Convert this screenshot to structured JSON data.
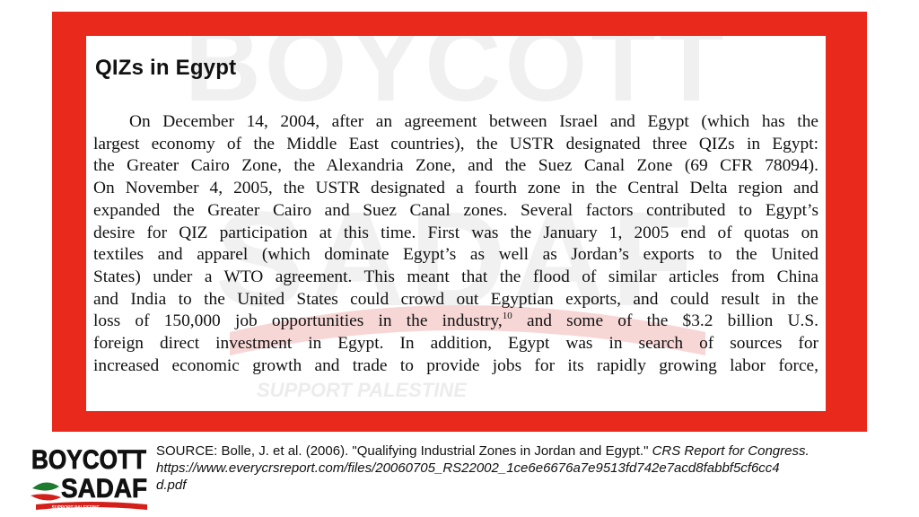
{
  "document": {
    "title": "QIZs in Egypt",
    "lines": [
      "On December 14, 2004, after an agreement between Israel and Egypt (which has the",
      "largest economy of the Middle East countries), the USTR designated three QIZs in Egypt:",
      "the Greater Cairo Zone, the Alexandria Zone, and the Suez Canal Zone (69 CFR 78094).",
      "On November 4, 2005, the USTR designated a fourth zone in the Central Delta region and",
      "expanded the Greater Cairo and Suez Canal zones. Several factors contributed to Egypt’s",
      "desire for QIZ participation at this time.  First  was the  January 1, 2005 end of quotas on",
      "textiles and apparel (which dominate Egypt’s as well as Jordan’s exports to the United",
      "States) under a WTO agreement.  This meant that the flood of similar articles from China",
      "and India to the United States could crowd out Egyptian exports, and could result in the"
    ],
    "line_10_before_footnote": "loss of 150,000 job opportunities in the industry,",
    "footnote_marker": "10",
    "line_10_after_footnote": " and some of the $3.2 billion U.S.",
    "lines_end": [
      "foreign direct investment in Egypt.  In addition, Egypt was   in search of sources for",
      "increased economic growth and trade to provide jobs for its rapidly growing labor force,"
    ]
  },
  "watermark": {
    "line1": "BOYCOTT",
    "line2": "SADAF",
    "tagline": "SUPPORT PALESTINE"
  },
  "logo": {
    "line1": "BOYCOTT",
    "line2": "SADAF",
    "tagline": "SUPPORT PALESTINE"
  },
  "source": {
    "prefix": "SOURCE: Bolle, J. et al. (2006). \"Qualifying Industrial Zones in Jordan and Egypt.\" ",
    "journal": "CRS Report for Congress.",
    "url_line1": "https://www.everycrsreport.com/files/20060705_RS22002_1ce6e6676a7e9513fd742e7acd8fabbf5cf6cc4",
    "url_line2": "d.pdf"
  },
  "colors": {
    "frame_red": "#e8291c",
    "logo_green": "#1e7a2e",
    "logo_red": "#d4201a",
    "text": "#111111"
  }
}
